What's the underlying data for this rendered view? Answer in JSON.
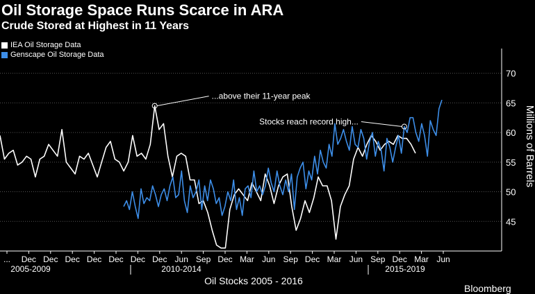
{
  "title": "Oil Storage Space Runs Scarce in ARA",
  "subtitle": "Crude Stored at Highest in 11 Years",
  "brand": "Bloomberg",
  "colors": {
    "background": "#000000",
    "iea": "#ffffff",
    "genscape": "#3d8ee8",
    "grid": "#555555"
  },
  "chart_data": {
    "type": "line",
    "title": "Oil Storage Space Runs Scarce in ARA",
    "subtitle": "Crude Stored at Highest in 11 Years",
    "xlabel": "Oil Stocks 2005 - 2016",
    "ylabel": "Millions of Barrels",
    "ylim": [
      40,
      73
    ],
    "yticks": [
      45,
      50,
      55,
      60,
      65,
      70
    ],
    "grid": true,
    "legend_position": "top-left",
    "x_tick_labels": [
      "...",
      "Dec",
      "Dec",
      "Dec",
      "Dec",
      "Dec",
      "Dec",
      "Dec",
      "Jun",
      "Sep",
      "Dec",
      "Mar",
      "Jun",
      "Sep",
      "Dec",
      "Mar",
      "Jun",
      "Sep",
      "Dec",
      "Mar",
      "Jun"
    ],
    "x_period_labels": [
      "2005-2009",
      "2010-2014",
      "2015-2019"
    ],
    "annotations": [
      {
        "text": "...above their 11-year peak",
        "series": "IEA Oil Storage Data",
        "point_index": 35
      },
      {
        "text": "Stocks reach record high...",
        "series": "Genscape Oil Storage Data",
        "point_index": 97
      }
    ],
    "series": [
      {
        "name": "IEA Oil Storage Data",
        "color": "#ffffff",
        "values": [
          59.5,
          55.5,
          56.5,
          57.0,
          54.5,
          55.0,
          56.0,
          55.5,
          52.5,
          55.5,
          56.0,
          58.0,
          57.0,
          56.0,
          60.5,
          55.0,
          54.0,
          53.0,
          56.0,
          55.5,
          56.5,
          54.5,
          52.5,
          55.0,
          57.5,
          58.5,
          55.5,
          55.0,
          53.5,
          55.0,
          59.5,
          56.0,
          56.5,
          55.5,
          58.0,
          64.5,
          60.5,
          61.5,
          56.0,
          52.5,
          56.0,
          56.5,
          56.0,
          52.0,
          52.0,
          48.0,
          48.5,
          46.5,
          43.5,
          41.0,
          40.5,
          40.5,
          47.0,
          49.5,
          50.5,
          49.5,
          48.5,
          51.5,
          50.0,
          48.5,
          53.0,
          51.0,
          48.0,
          51.0,
          52.5,
          53.0,
          47.5,
          43.5,
          45.5,
          48.5,
          46.5,
          49.0,
          52.5,
          51.0,
          51.0,
          48.5,
          42.0,
          47.5,
          49.5,
          51.0,
          55.5,
          57.5,
          56.0,
          58.0,
          59.5,
          58.5,
          57.0,
          58.0,
          58.5,
          58.0,
          59.5,
          59.0,
          59.0,
          58.0,
          56.5
        ]
      },
      {
        "name": "Genscape Oil Storage Data",
        "color": "#3d8ee8",
        "values": [
          47.5,
          48.5,
          47.0,
          50.0,
          47.5,
          45.5,
          50.5,
          48.0,
          49.0,
          48.5,
          51.0,
          49.5,
          47.5,
          49.5,
          50.5,
          48.5,
          51.0,
          52.5,
          49.0,
          49.5,
          53.5,
          48.5,
          46.5,
          51.0,
          49.0,
          50.0,
          52.0,
          47.0,
          51.0,
          48.5,
          52.0,
          50.5,
          48.0,
          49.0,
          46.0,
          47.5,
          50.0,
          48.5,
          52.0,
          47.0,
          49.0,
          46.0,
          50.5,
          51.0,
          49.0,
          53.5,
          50.0,
          51.0,
          49.5,
          51.0,
          54.0,
          51.5,
          50.0,
          53.5,
          51.0,
          49.5,
          52.0,
          50.0,
          53.0,
          47.0,
          52.5,
          54.0,
          55.0,
          50.5,
          53.5,
          52.0,
          56.0,
          53.0,
          57.0,
          55.0,
          54.0,
          58.0,
          56.0,
          61.5,
          58.0,
          59.0,
          60.5,
          58.5,
          57.0,
          61.0,
          58.0,
          57.5,
          60.5,
          59.0,
          55.5,
          58.5,
          60.0,
          56.0,
          58.5,
          57.0,
          53.5,
          59.0,
          57.5,
          55.0,
          57.5,
          59.5,
          56.5,
          61.0,
          60.0,
          62.5,
          62.5,
          60.0,
          58.5,
          61.5,
          59.5,
          56.0,
          62.0,
          60.5,
          59.5,
          64.0,
          65.5
        ]
      }
    ]
  }
}
